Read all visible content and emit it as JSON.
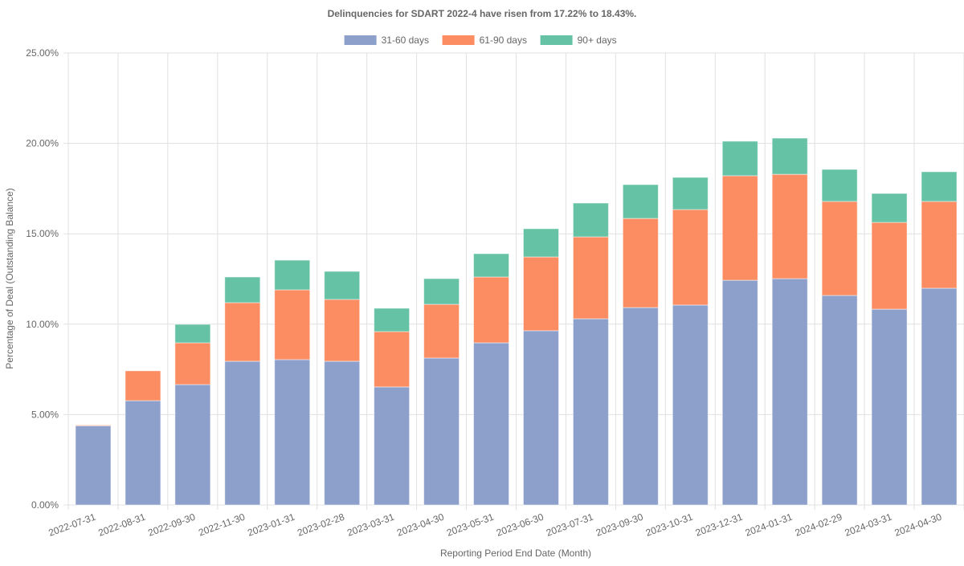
{
  "chart_data": {
    "type": "bar",
    "stacked": true,
    "title": "Delinquencies for SDART 2022-4 have risen from 17.22% to 18.43%.",
    "xlabel": "Reporting Period End Date (Month)",
    "ylabel": "Percentage of Deal (Outstanding Balance)",
    "ylim": [
      0,
      25
    ],
    "yticks": [
      "0.00%",
      "5.00%",
      "10.00%",
      "15.00%",
      "20.00%",
      "25.00%"
    ],
    "grid": true,
    "legend_position": "top",
    "categories": [
      "2022-07-31",
      "2022-08-31",
      "2022-09-30",
      "2022-11-30",
      "2023-01-31",
      "2023-02-28",
      "2023-03-31",
      "2023-04-30",
      "2023-05-31",
      "2023-06-30",
      "2023-07-31",
      "2023-09-30",
      "2023-10-31",
      "2023-12-31",
      "2024-01-31",
      "2024-02-29",
      "2024-03-31",
      "2024-04-30"
    ],
    "series": [
      {
        "name": "31-60 days",
        "color": "#8da0cb",
        "values": [
          4.38,
          5.77,
          6.66,
          7.95,
          8.04,
          7.95,
          6.53,
          8.13,
          8.97,
          9.64,
          10.3,
          10.92,
          11.06,
          12.43,
          12.52,
          11.59,
          10.83,
          11.99
        ]
      },
      {
        "name": "61-90 days",
        "color": "#fc8d62",
        "values": [
          0.04,
          1.65,
          2.31,
          3.24,
          3.86,
          3.42,
          3.06,
          2.97,
          3.64,
          4.08,
          4.53,
          4.93,
          5.28,
          5.78,
          5.77,
          5.2,
          4.8,
          4.8
        ]
      },
      {
        "name": "90+ days",
        "color": "#66c2a5",
        "values": [
          0.0,
          0.0,
          1.02,
          1.42,
          1.64,
          1.55,
          1.29,
          1.42,
          1.29,
          1.56,
          1.87,
          1.87,
          1.78,
          1.91,
          2.0,
          1.77,
          1.6,
          1.64
        ]
      }
    ]
  }
}
